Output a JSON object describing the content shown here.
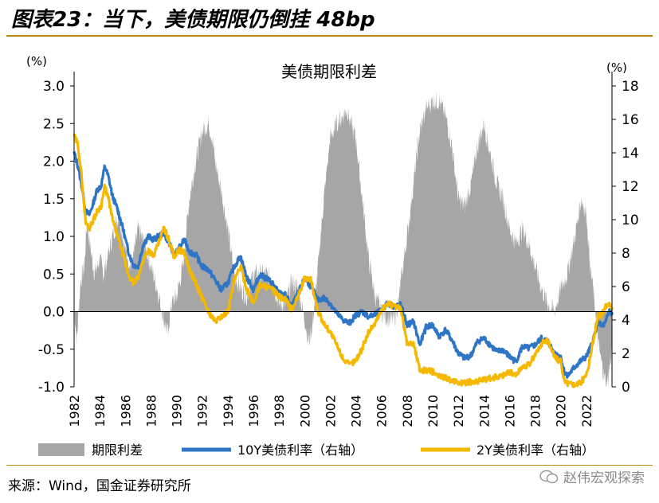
{
  "figure": {
    "title": "图表23：当下，美债期限仍倒挂 48bp",
    "source": "来源：Wind，国金证券研究所",
    "watermark": "赵伟宏观探索"
  },
  "colors": {
    "spread": "#a6a6a6",
    "y10": "#2e75c6",
    "y2": "#f5b800"
  },
  "chart_data": {
    "type": "area",
    "title": "美债期限利差",
    "left_unit": "(%)",
    "right_unit": "(%)",
    "y_left_range": [
      -1.0,
      3.0
    ],
    "y_right_range": [
      0,
      18
    ],
    "y_left_ticks": [
      "3.0",
      "2.5",
      "2.0",
      "1.5",
      "1.0",
      "0.5",
      "0.0",
      "-0.5",
      "-1.0"
    ],
    "y_right_ticks": [
      "18",
      "16",
      "14",
      "12",
      "10",
      "8",
      "6",
      "4",
      "2",
      "0"
    ],
    "x_range": [
      1982,
      2024
    ],
    "x_ticks": [
      "1982",
      "1984",
      "1986",
      "1988",
      "1990",
      "1992",
      "1994",
      "1996",
      "1998",
      "2000",
      "2002",
      "2004",
      "2006",
      "2008",
      "2010",
      "2012",
      "2014",
      "2016",
      "2018",
      "2020",
      "2022"
    ],
    "legend": [
      "期限利差",
      "10Y美债利率（右轴）",
      "2Y美债利率（右轴）"
    ],
    "series": [
      {
        "name": "期限利差",
        "axis": "left",
        "kind": "area",
        "x": [
          1982.0,
          1982.2,
          1982.5,
          1982.8,
          1983.0,
          1983.3,
          1983.6,
          1984.0,
          1984.3,
          1984.6,
          1985.0,
          1985.5,
          1986.0,
          1986.5,
          1987.0,
          1987.5,
          1988.0,
          1988.5,
          1989.0,
          1989.3,
          1989.6,
          1990.0,
          1990.5,
          1991.0,
          1991.5,
          1992.0,
          1992.5,
          1992.8,
          1993.0,
          1993.5,
          1994.0,
          1994.5,
          1995.0,
          1995.5,
          1996.0,
          1996.5,
          1997.0,
          1997.5,
          1998.0,
          1998.5,
          1999.0,
          1999.5,
          2000.0,
          2000.3,
          2000.6,
          2001.0,
          2001.5,
          2002.0,
          2002.5,
          2003.0,
          2003.3,
          2003.6,
          2004.0,
          2004.5,
          2005.0,
          2005.5,
          2006.0,
          2006.5,
          2007.0,
          2007.3,
          2007.6,
          2008.0,
          2008.5,
          2009.0,
          2009.5,
          2010.0,
          2010.5,
          2011.0,
          2011.5,
          2012.0,
          2012.5,
          2013.0,
          2013.5,
          2014.0,
          2014.5,
          2015.0,
          2015.5,
          2016.0,
          2016.5,
          2017.0,
          2017.5,
          2018.0,
          2018.5,
          2019.0,
          2019.5,
          2020.0,
          2020.5,
          2021.0,
          2021.3,
          2021.6,
          2022.0,
          2022.3,
          2022.6,
          2023.0,
          2023.3,
          2023.6,
          2024.0
        ],
        "values": [
          0.1,
          -0.4,
          0.4,
          0.6,
          1.2,
          0.8,
          0.5,
          0.7,
          0.5,
          0.7,
          1.0,
          1.3,
          0.8,
          0.6,
          1.1,
          0.9,
          0.6,
          0.3,
          -0.1,
          -0.3,
          0.1,
          0.2,
          0.6,
          1.5,
          2.0,
          2.4,
          2.5,
          2.3,
          2.0,
          1.6,
          1.1,
          0.5,
          0.3,
          0.2,
          0.5,
          0.5,
          0.5,
          0.4,
          0.1,
          0.1,
          0.4,
          0.3,
          -0.1,
          -0.4,
          -0.2,
          0.5,
          1.5,
          2.3,
          2.5,
          2.6,
          2.7,
          2.5,
          2.3,
          1.5,
          0.7,
          0.2,
          0.0,
          -0.1,
          -0.1,
          0.1,
          0.5,
          1.0,
          1.7,
          2.4,
          2.7,
          2.8,
          2.8,
          2.6,
          2.2,
          1.5,
          1.4,
          1.7,
          2.2,
          2.5,
          2.1,
          1.7,
          1.5,
          1.1,
          0.9,
          1.1,
          0.9,
          0.6,
          0.3,
          0.1,
          0.0,
          0.3,
          0.5,
          0.9,
          1.2,
          1.5,
          1.3,
          0.6,
          0.2,
          -0.5,
          -0.8,
          -1.0,
          -0.5
        ]
      },
      {
        "name": "10Y美债利率（右轴）",
        "axis": "right",
        "kind": "line",
        "x": [
          1982.0,
          1982.3,
          1982.6,
          1982.9,
          1983.2,
          1983.5,
          1983.8,
          1984.1,
          1984.4,
          1984.7,
          1985.0,
          1985.4,
          1985.8,
          1986.2,
          1986.6,
          1987.0,
          1987.4,
          1987.8,
          1988.2,
          1988.6,
          1989.0,
          1989.4,
          1989.8,
          1990.2,
          1990.6,
          1991.0,
          1991.5,
          1992.0,
          1992.5,
          1993.0,
          1993.5,
          1994.0,
          1994.5,
          1995.0,
          1995.5,
          1996.0,
          1996.5,
          1997.0,
          1997.5,
          1998.0,
          1998.5,
          1999.0,
          1999.5,
          2000.0,
          2000.5,
          2001.0,
          2001.5,
          2002.0,
          2002.5,
          2003.0,
          2003.5,
          2004.0,
          2004.5,
          2005.0,
          2005.5,
          2006.0,
          2006.5,
          2007.0,
          2007.5,
          2008.0,
          2008.5,
          2009.0,
          2009.5,
          2010.0,
          2010.5,
          2011.0,
          2011.5,
          2012.0,
          2012.5,
          2013.0,
          2013.5,
          2014.0,
          2014.5,
          2015.0,
          2015.5,
          2016.0,
          2016.5,
          2017.0,
          2017.5,
          2018.0,
          2018.5,
          2019.0,
          2019.5,
          2020.0,
          2020.3,
          2020.6,
          2021.0,
          2021.5,
          2022.0,
          2022.3,
          2022.6,
          2022.9,
          2023.2,
          2023.5,
          2023.8,
          2024.0
        ],
        "values": [
          14.0,
          13.2,
          12.0,
          10.5,
          10.3,
          11.0,
          11.8,
          12.0,
          13.2,
          12.5,
          11.4,
          10.6,
          9.5,
          8.2,
          7.3,
          7.2,
          8.5,
          9.0,
          8.8,
          9.0,
          9.2,
          8.6,
          7.9,
          8.3,
          8.8,
          8.1,
          7.9,
          7.2,
          7.0,
          6.4,
          5.8,
          6.2,
          7.2,
          7.8,
          6.5,
          5.8,
          6.7,
          6.5,
          6.2,
          5.6,
          5.5,
          4.8,
          5.6,
          6.5,
          6.0,
          5.2,
          5.3,
          5.0,
          4.4,
          4.0,
          3.8,
          4.3,
          4.5,
          4.2,
          4.3,
          4.6,
          5.0,
          4.8,
          4.9,
          3.7,
          3.9,
          2.5,
          3.6,
          3.7,
          3.0,
          3.4,
          2.8,
          2.0,
          1.7,
          1.9,
          2.7,
          2.9,
          2.5,
          2.1,
          2.2,
          1.8,
          1.5,
          2.4,
          2.3,
          2.5,
          2.9,
          2.7,
          2.0,
          1.8,
          0.8,
          0.7,
          1.1,
          1.5,
          1.8,
          2.3,
          3.0,
          3.9,
          3.6,
          3.8,
          4.6,
          4.3
        ]
      },
      {
        "name": "2Y美债利率（右轴）",
        "axis": "right",
        "kind": "line",
        "x": [
          1982.0,
          1982.3,
          1982.6,
          1982.9,
          1983.2,
          1983.5,
          1983.8,
          1984.1,
          1984.4,
          1984.7,
          1985.0,
          1985.4,
          1985.8,
          1986.2,
          1986.6,
          1987.0,
          1987.4,
          1987.8,
          1988.2,
          1988.6,
          1989.0,
          1989.4,
          1989.8,
          1990.2,
          1990.6,
          1991.0,
          1991.5,
          1992.0,
          1992.5,
          1993.0,
          1993.5,
          1994.0,
          1994.5,
          1995.0,
          1995.5,
          1996.0,
          1996.5,
          1997.0,
          1997.5,
          1998.0,
          1998.5,
          1999.0,
          1999.5,
          2000.0,
          2000.5,
          2001.0,
          2001.5,
          2002.0,
          2002.5,
          2003.0,
          2003.5,
          2004.0,
          2004.5,
          2005.0,
          2005.5,
          2006.0,
          2006.5,
          2007.0,
          2007.5,
          2008.0,
          2008.5,
          2009.0,
          2009.5,
          2010.0,
          2010.5,
          2011.0,
          2011.5,
          2012.0,
          2012.5,
          2013.0,
          2013.5,
          2014.0,
          2014.5,
          2015.0,
          2015.5,
          2016.0,
          2016.5,
          2017.0,
          2017.5,
          2018.0,
          2018.5,
          2019.0,
          2019.5,
          2020.0,
          2020.3,
          2020.6,
          2021.0,
          2021.5,
          2022.0,
          2022.3,
          2022.6,
          2022.9,
          2023.2,
          2023.5,
          2023.8,
          2024.0
        ],
        "values": [
          15.0,
          14.5,
          12.5,
          9.8,
          9.5,
          10.0,
          10.5,
          10.8,
          12.0,
          11.2,
          10.0,
          9.0,
          8.0,
          6.8,
          6.2,
          6.5,
          7.6,
          8.2,
          7.8,
          8.6,
          9.5,
          8.8,
          7.8,
          8.2,
          8.0,
          7.0,
          6.2,
          5.3,
          4.5,
          3.9,
          4.2,
          4.5,
          6.3,
          7.2,
          5.8,
          5.0,
          6.1,
          6.0,
          5.8,
          5.4,
          5.2,
          4.6,
          5.4,
          6.5,
          6.4,
          4.6,
          3.8,
          3.3,
          2.5,
          1.7,
          1.3,
          1.6,
          2.3,
          3.3,
          3.8,
          4.6,
          5.0,
          4.8,
          4.7,
          2.6,
          2.6,
          1.0,
          1.0,
          0.9,
          0.6,
          0.6,
          0.3,
          0.25,
          0.25,
          0.3,
          0.35,
          0.4,
          0.5,
          0.6,
          0.7,
          0.9,
          0.7,
          1.2,
          1.3,
          1.9,
          2.6,
          2.8,
          1.8,
          1.5,
          0.3,
          0.2,
          0.15,
          0.2,
          0.7,
          1.8,
          3.0,
          4.2,
          4.3,
          4.8,
          5.0,
          4.6
        ]
      }
    ]
  }
}
